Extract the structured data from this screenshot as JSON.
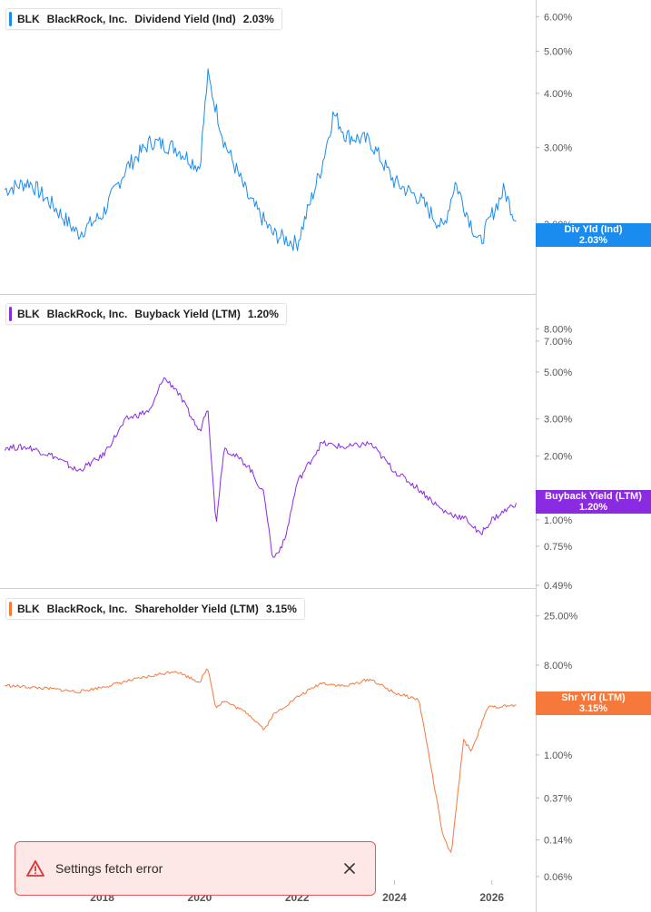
{
  "toast": {
    "message": "Settings fetch error",
    "icon": "warning-triangle-icon",
    "close_icon": "close-icon",
    "color": "#e05a5a"
  },
  "chart_data": [
    {
      "type": "line",
      "ticker": "BLK",
      "company": "BlackRock, Inc.",
      "metric": "Dividend Yield (Ind)",
      "latest": "2.03%",
      "tag_label": "Div Yld (Ind)",
      "tag_value": "2.03%",
      "color": "#1a8cf0",
      "y_scale": "log",
      "ylim": [
        1.55,
        6.4
      ],
      "y_ticks": [
        2,
        3,
        4,
        5,
        6
      ],
      "y_tick_labels": [
        "2.00%",
        "3.00%",
        "4.00%",
        "5.00%",
        "6.00%"
      ],
      "x": [
        "2016-01",
        "2016-07",
        "2017-01",
        "2017-07",
        "2018-01",
        "2018-07",
        "2019-01",
        "2019-07",
        "2020-01",
        "2020-03",
        "2020-07",
        "2021-01",
        "2021-07",
        "2022-01",
        "2022-07",
        "2022-10",
        "2023-01",
        "2023-07",
        "2024-01",
        "2024-07",
        "2025-01",
        "2025-04",
        "2025-07",
        "2025-10",
        "2026-01",
        "2026-04",
        "2026-07"
      ],
      "values": [
        2.4,
        2.5,
        2.2,
        1.9,
        2.1,
        2.7,
        3.1,
        3.0,
        2.7,
        4.4,
        3.1,
        2.3,
        1.9,
        1.8,
        2.7,
        3.6,
        3.2,
        3.1,
        2.5,
        2.3,
        1.95,
        2.5,
        2.1,
        1.8,
        2.1,
        2.4,
        2.03
      ]
    },
    {
      "type": "line",
      "ticker": "BLK",
      "company": "BlackRock, Inc.",
      "metric": "Buyback Yield (LTM)",
      "latest": "1.20%",
      "tag_label": "Buyback Yield (LTM)",
      "tag_value": "1.20%",
      "color": "#8a2be2",
      "y_scale": "log",
      "ylim": [
        0.49,
        9.5
      ],
      "y_ticks": [
        0.49,
        0.75,
        1.0,
        2.0,
        3.0,
        5.0,
        7.0,
        8.0
      ],
      "y_tick_labels": [
        "0.49%",
        "0.75%",
        "1.00%",
        "2.00%",
        "3.00%",
        "5.00%",
        "7.00%",
        "8.00%"
      ],
      "x": [
        "2016-01",
        "2016-07",
        "2017-01",
        "2017-07",
        "2018-01",
        "2018-07",
        "2019-01",
        "2019-04",
        "2019-07",
        "2020-01",
        "2020-03",
        "2020-05",
        "2020-07",
        "2021-01",
        "2021-05",
        "2021-07",
        "2021-10",
        "2022-01",
        "2022-07",
        "2023-01",
        "2023-07",
        "2024-01",
        "2024-07",
        "2025-01",
        "2025-07",
        "2025-10",
        "2026-01",
        "2026-07"
      ],
      "values": [
        2.2,
        2.2,
        2.0,
        1.7,
        2.0,
        3.0,
        3.3,
        4.7,
        4.2,
        2.6,
        3.5,
        0.95,
        2.2,
        1.8,
        1.3,
        0.65,
        0.8,
        1.5,
        2.3,
        2.2,
        2.3,
        1.7,
        1.4,
        1.1,
        1.0,
        0.85,
        1.0,
        1.2
      ]
    },
    {
      "type": "line",
      "ticker": "BLK",
      "company": "BlackRock, Inc.",
      "metric": "Shareholder Yield (LTM)",
      "latest": "3.15%",
      "tag_label": "Shr Yld (LTM)",
      "tag_value": "3.15%",
      "color": "#f5793b",
      "y_scale": "log",
      "ylim": [
        0.055,
        30
      ],
      "y_ticks": [
        0.06,
        0.14,
        0.37,
        1.0,
        8.0,
        25.0
      ],
      "y_tick_labels": [
        "0.06%",
        "0.14%",
        "0.37%",
        "1.00%",
        "8.00%",
        "25.00%"
      ],
      "x": [
        "2016-01",
        "2016-07",
        "2017-01",
        "2017-07",
        "2018-01",
        "2018-07",
        "2019-01",
        "2019-07",
        "2020-01",
        "2020-03",
        "2020-05",
        "2020-07",
        "2021-01",
        "2021-05",
        "2021-07",
        "2022-01",
        "2022-07",
        "2023-01",
        "2023-07",
        "2024-01",
        "2024-07",
        "2024-09",
        "2025-01",
        "2025-03",
        "2025-06",
        "2025-08",
        "2025-12",
        "2026-07"
      ],
      "values": [
        5.0,
        4.8,
        4.6,
        4.3,
        4.8,
        5.5,
        6.2,
        7.0,
        5.4,
        7.5,
        3.0,
        3.5,
        2.6,
        1.8,
        2.5,
        3.8,
        5.3,
        4.9,
        5.8,
        4.2,
        3.6,
        1.3,
        0.15,
        0.1,
        1.4,
        1.1,
        3.0,
        3.15
      ]
    }
  ],
  "x_axis": {
    "ticks": [
      "2018",
      "2020",
      "2022",
      "2024",
      "2026"
    ]
  }
}
